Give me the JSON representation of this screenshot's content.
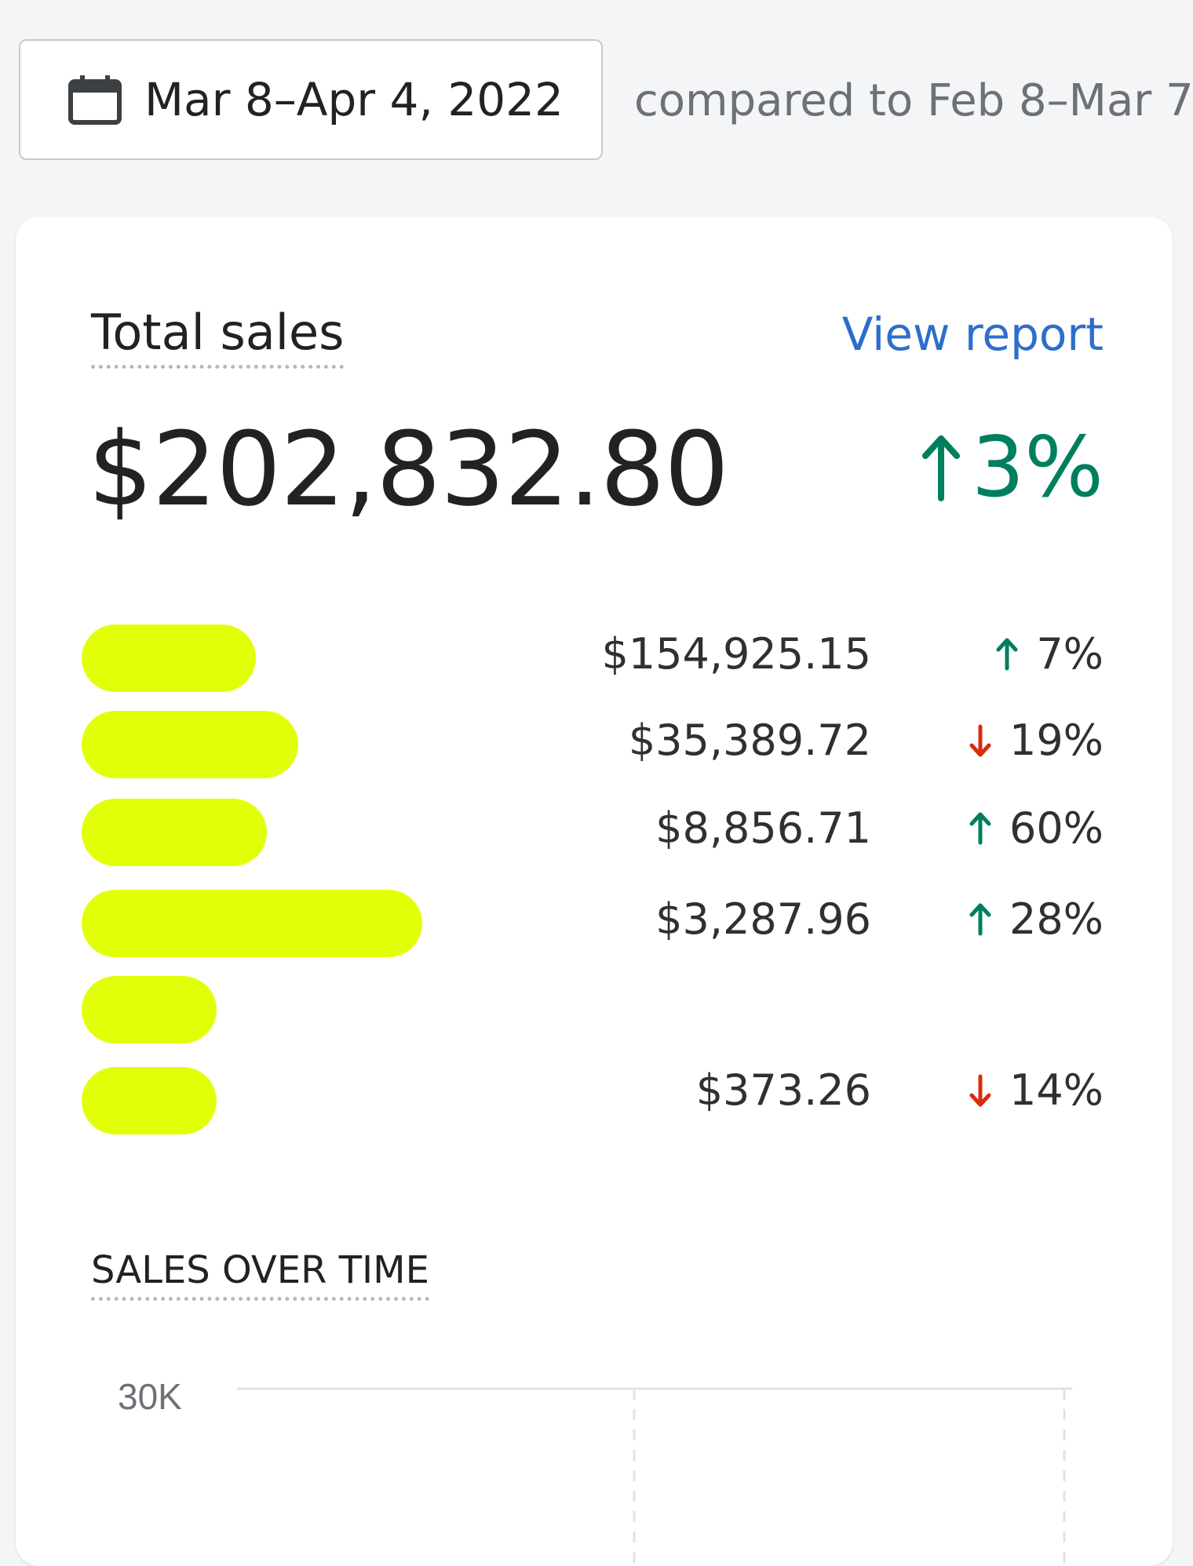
{
  "date_picker": {
    "icon": "calendar-icon",
    "range": "Mar 8–Apr 4, 2022",
    "compare": "compared to Feb 8–Mar 7,"
  },
  "card": {
    "title": "Total sales",
    "view_report": "View report",
    "total_value": "$202,832.80",
    "total_change": {
      "direction": "up",
      "text": "3%",
      "color": "#007f5f"
    },
    "rows": [
      {
        "value": "$154,925.15",
        "direction": "up",
        "change": "7%"
      },
      {
        "value": "$35,389.72",
        "direction": "down",
        "change": "19%"
      },
      {
        "value": "$8,856.71",
        "direction": "up",
        "change": "60%"
      },
      {
        "value": "$3,287.96",
        "direction": "up",
        "change": "28%"
      },
      {
        "value": "",
        "direction": "",
        "change": ""
      },
      {
        "value": "$373.26",
        "direction": "down",
        "change": "14%"
      }
    ],
    "colors": {
      "up": "#007f5f",
      "down": "#d72c0d",
      "redaction": "#e2ff0a",
      "link": "#2c6ecb"
    }
  },
  "sales_over_time": {
    "title": "SALES OVER TIME",
    "y_tick": "30K"
  }
}
